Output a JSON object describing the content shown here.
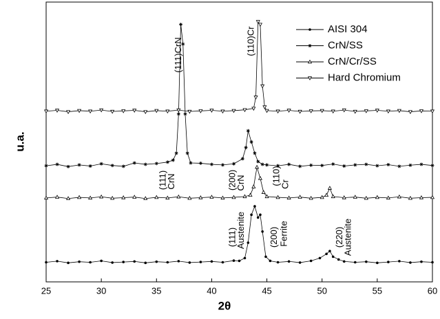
{
  "chart_data": {
    "type": "line",
    "xlabel": "2θ",
    "ylabel": "u.a.",
    "xlim": [
      25,
      60
    ],
    "ylim": [
      0,
      100
    ],
    "xticks": [
      25,
      30,
      35,
      40,
      45,
      50,
      55,
      60
    ],
    "legend": "upper right",
    "series": [
      {
        "name": "AISI 304",
        "color": "#000000",
        "marker": "circle",
        "x": [
          25,
          26,
          27,
          28,
          29,
          30,
          31,
          32,
          33,
          34,
          35,
          36,
          37,
          38,
          39,
          40,
          41,
          42,
          42.5,
          43,
          43.3,
          43.6,
          43.9,
          44.2,
          44.4,
          44.6,
          44.9,
          45.3,
          46,
          47,
          48,
          49,
          49.8,
          50.4,
          50.7,
          51,
          51.5,
          52,
          53,
          54,
          55,
          56,
          57,
          58,
          59,
          60
        ],
        "values": [
          7,
          7.4,
          6.8,
          7.2,
          7,
          7.5,
          6.9,
          7.1,
          7.3,
          6.8,
          7.2,
          7,
          7.4,
          6.9,
          7.1,
          7.3,
          7,
          7.6,
          7.5,
          8.5,
          14,
          24,
          27,
          23,
          24,
          18,
          9,
          7.5,
          7,
          7.3,
          6.9,
          7.5,
          8.5,
          10,
          11,
          9,
          8,
          7.3,
          7,
          7.2,
          6.8,
          7.1,
          7.4,
          6.9,
          7.2,
          7
        ]
      },
      {
        "name": "CrN/SS",
        "color": "#000000",
        "marker": "star",
        "x": [
          25,
          26,
          27,
          28,
          29,
          30,
          31,
          32,
          33,
          34,
          35,
          36,
          36.5,
          36.8,
          37,
          37.2,
          37.4,
          37.6,
          37.8,
          38.1,
          39,
          40,
          41,
          42,
          42.8,
          43.1,
          43.3,
          43.6,
          43.9,
          44.2,
          44.6,
          45,
          46,
          47,
          48,
          49,
          50,
          51,
          52,
          53,
          54,
          55,
          56,
          57,
          58,
          59,
          60
        ],
        "values": [
          41.5,
          42,
          41.2,
          41.8,
          41.4,
          42.2,
          41.6,
          41.3,
          42.5,
          42,
          42.3,
          42.8,
          43.5,
          46,
          60,
          92,
          85,
          60,
          46,
          42.5,
          42.4,
          42,
          41.8,
          42.2,
          44,
          48,
          54,
          50,
          46,
          43,
          42,
          41.8,
          41.5,
          42,
          41.3,
          41.7,
          41.6,
          42.1,
          41.4,
          41.8,
          42,
          41.5,
          41.9,
          41.3,
          41.7,
          42,
          41.6
        ]
      },
      {
        "name": "CrN/Cr/SS",
        "color": "#000000",
        "marker": "triangle-up",
        "x": [
          25,
          26,
          27,
          28,
          29,
          30,
          31,
          32,
          33,
          34,
          35,
          36,
          37,
          38,
          39,
          40,
          41,
          42,
          43,
          43.5,
          43.8,
          44.1,
          44.4,
          44.7,
          45,
          46,
          47,
          48,
          49,
          50,
          50.4,
          50.7,
          51,
          52,
          53,
          54,
          55,
          56,
          57,
          58,
          59,
          60
        ],
        "values": [
          30,
          30.3,
          29.8,
          30.2,
          30,
          30.4,
          29.9,
          30.1,
          30.3,
          29.8,
          30.2,
          30,
          30.4,
          29.9,
          30.1,
          30.3,
          30,
          30.2,
          30.5,
          31,
          34,
          41,
          37,
          32,
          30.5,
          30.2,
          30,
          30.3,
          29.9,
          30.2,
          31,
          33.5,
          30.5,
          30.1,
          30.3,
          29.9,
          30.2,
          30,
          30.4,
          29.9,
          30.1,
          30.2
        ]
      },
      {
        "name": "Hard Chromium",
        "color": "#000000",
        "marker": "triangle-down",
        "x": [
          25,
          26,
          27,
          28,
          29,
          30,
          31,
          32,
          33,
          34,
          35,
          36,
          37,
          38,
          39,
          40,
          41,
          42,
          43,
          43.8,
          44,
          44.2,
          44.4,
          44.6,
          44.8,
          45,
          46,
          47,
          48,
          49,
          50,
          51,
          52,
          53,
          54,
          55,
          56,
          57,
          58,
          59,
          60
        ],
        "values": [
          61,
          61.3,
          60.8,
          61.2,
          61,
          61.4,
          60.9,
          61.1,
          61.3,
          60.8,
          61.2,
          61,
          61.4,
          60.9,
          61.1,
          61.3,
          61,
          61.2,
          61.5,
          62,
          66,
          93,
          92,
          70,
          62.5,
          61.2,
          61,
          61.3,
          60.9,
          61.1,
          61.2,
          61,
          61.4,
          60.9,
          61.1,
          61.3,
          61,
          61.2,
          60.8,
          61.1,
          61
        ]
      }
    ],
    "annotations": [
      "(111)CrN",
      "(110)Cr",
      "(111)",
      "CrN",
      "(200)",
      "CrN",
      "(110)",
      "Cr",
      "(111)",
      "Austenite",
      "(200)",
      "Ferrite",
      "(220)",
      "Austenite"
    ]
  }
}
